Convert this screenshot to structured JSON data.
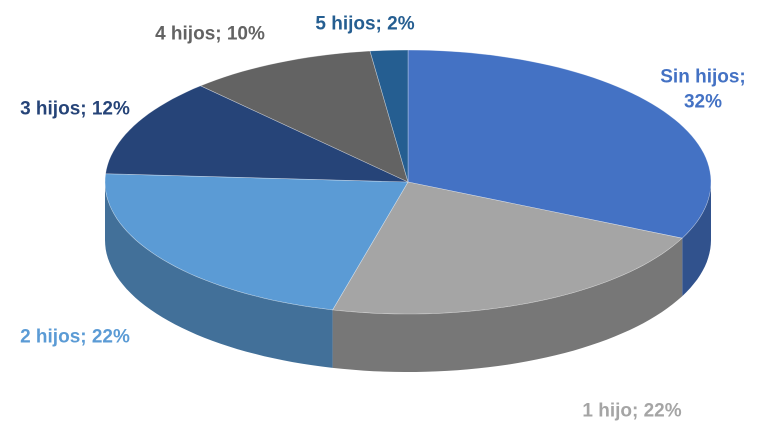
{
  "chart_data": {
    "type": "pie3d",
    "values": [
      32,
      22,
      22,
      12,
      10,
      2
    ],
    "value_labels": [
      "Sin hijos; 32%",
      "1 hijo; 22%",
      "2 hijos; 22%",
      "3 hijos; 12%",
      "4 hijos; 10%",
      "5 hijos; 2%"
    ],
    "colors": [
      "#4472c4",
      "#a5a5a5",
      "#5b9bd5",
      "#264478",
      "#636363",
      "#255e91"
    ]
  }
}
